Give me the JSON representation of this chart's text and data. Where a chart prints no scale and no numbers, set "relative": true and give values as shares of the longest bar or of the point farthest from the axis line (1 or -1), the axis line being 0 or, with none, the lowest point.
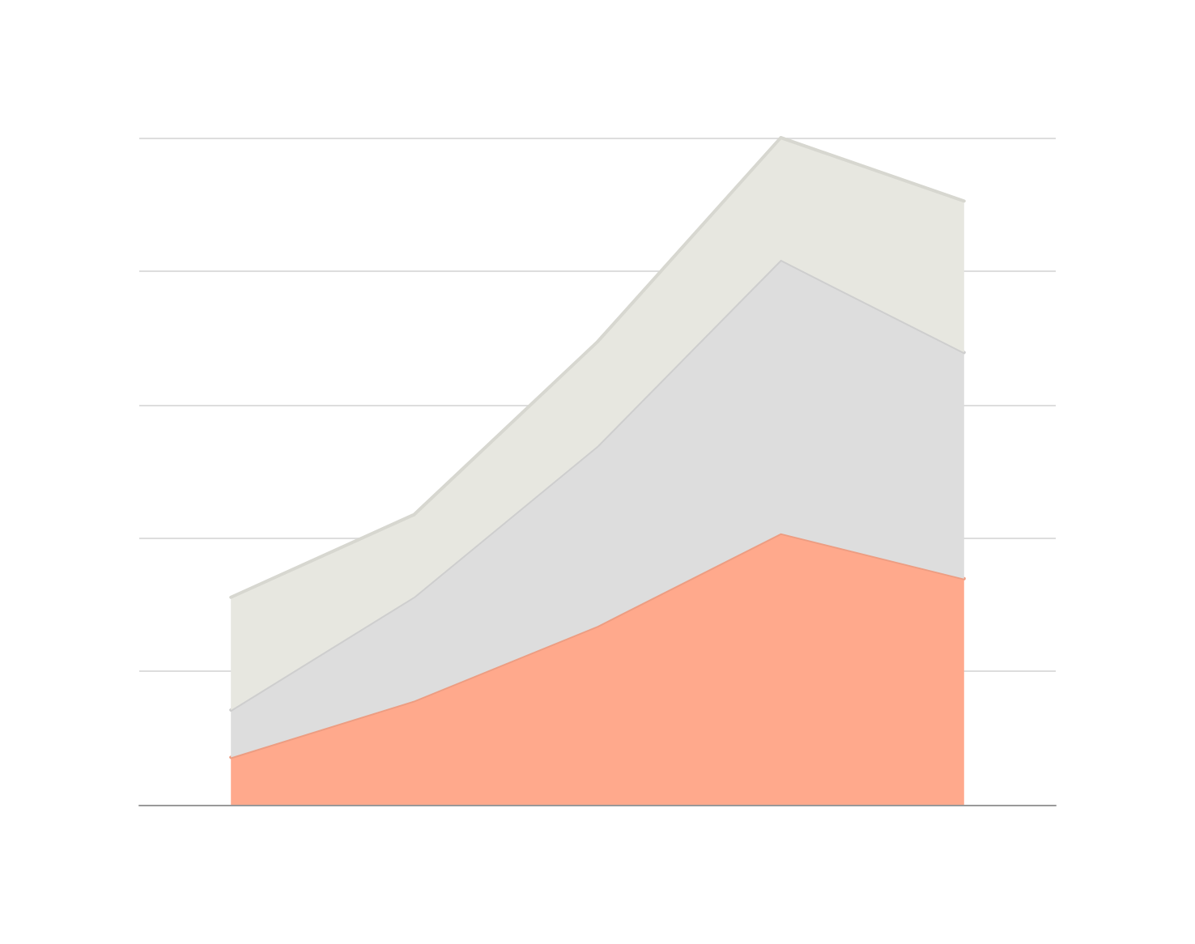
{
  "chart_data": {
    "type": "area",
    "relative": true,
    "stacked": true,
    "grid": "y",
    "marker": "none",
    "line_style": "solid",
    "categories": [
      null,
      null,
      null,
      null,
      null
    ],
    "series": [
      {
        "color": "#ffa98c",
        "values": [
          0.071,
          0.156,
          0.268,
          0.407,
          0.339
        ]
      },
      {
        "color": "#dddddd",
        "values": [
          0.071,
          0.156,
          0.27,
          0.41,
          0.339
        ]
      },
      {
        "color": "#e7e7e0",
        "values": [
          0.169,
          0.123,
          0.156,
          0.183,
          0.227
        ]
      }
    ]
  }
}
